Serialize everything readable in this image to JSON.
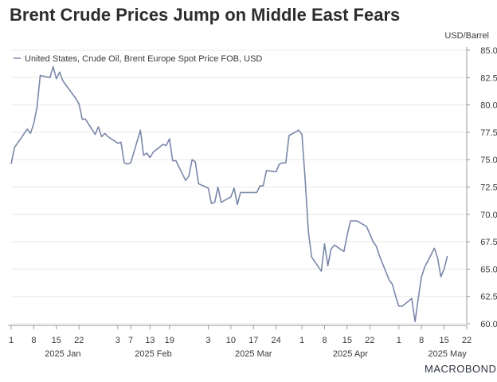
{
  "title": "Brent Crude Prices Jump on Middle East Fears",
  "logo_text": "MACROBOND",
  "colors": {
    "line": "#7a87a8",
    "grid": "#e8e8e8",
    "axis": "#999999",
    "text": "#3a3a3a",
    "title": "#2d2d2d"
  },
  "chart_data": {
    "type": "line",
    "unit_label": "USD/Barrel",
    "legend_position": "top-left",
    "grid": true,
    "ylim": [
      60.0,
      85.0
    ],
    "yticks": [
      60.0,
      62.5,
      65.0,
      67.5,
      70.0,
      72.5,
      75.0,
      77.5,
      80.0,
      82.5,
      85.0
    ],
    "y_tick_labels": [
      "60.0",
      "62.5",
      "65.0",
      "67.5",
      "70.0",
      "72.5",
      "75.0",
      "77.5",
      "80.0",
      "82.5",
      "85.0"
    ],
    "xlim": [
      "2025-01-01",
      "2025-05-22"
    ],
    "x_ticks": [
      {
        "date": "2025-01-01",
        "label": "1"
      },
      {
        "date": "2025-01-08",
        "label": "8"
      },
      {
        "date": "2025-01-15",
        "label": "15"
      },
      {
        "date": "2025-01-22",
        "label": "22"
      },
      {
        "date": "2025-02-03",
        "label": "3"
      },
      {
        "date": "2025-02-07",
        "label": "7"
      },
      {
        "date": "2025-02-13",
        "label": "13"
      },
      {
        "date": "2025-02-19",
        "label": "19"
      },
      {
        "date": "2025-03-03",
        "label": "3"
      },
      {
        "date": "2025-03-10",
        "label": "10"
      },
      {
        "date": "2025-03-17",
        "label": "17"
      },
      {
        "date": "2025-03-24",
        "label": "24"
      },
      {
        "date": "2025-04-01",
        "label": "1"
      },
      {
        "date": "2025-04-08",
        "label": "8"
      },
      {
        "date": "2025-04-15",
        "label": "15"
      },
      {
        "date": "2025-04-22",
        "label": "22"
      },
      {
        "date": "2025-05-01",
        "label": "1"
      },
      {
        "date": "2025-05-08",
        "label": "8"
      },
      {
        "date": "2025-05-15",
        "label": "15"
      },
      {
        "date": "2025-05-22",
        "label": "22"
      }
    ],
    "month_labels": [
      {
        "date": "2025-01-17",
        "label": "2025 Jan"
      },
      {
        "date": "2025-02-14",
        "label": "2025 Feb"
      },
      {
        "date": "2025-03-17",
        "label": "2025 Mar"
      },
      {
        "date": "2025-04-16",
        "label": "2025 Apr"
      },
      {
        "date": "2025-05-16",
        "label": "2025 May"
      }
    ],
    "series": [
      {
        "name": "United States, Crude Oil, Brent Europe Spot Price FOB, USD",
        "x": [
          "2025-01-01",
          "2025-01-02",
          "2025-01-06",
          "2025-01-07",
          "2025-01-08",
          "2025-01-09",
          "2025-01-10",
          "2025-01-13",
          "2025-01-14",
          "2025-01-15",
          "2025-01-16",
          "2025-01-17",
          "2025-01-21",
          "2025-01-22",
          "2025-01-23",
          "2025-01-24",
          "2025-01-27",
          "2025-01-28",
          "2025-01-29",
          "2025-01-30",
          "2025-01-31",
          "2025-02-03",
          "2025-02-04",
          "2025-02-05",
          "2025-02-06",
          "2025-02-07",
          "2025-02-10",
          "2025-02-11",
          "2025-02-12",
          "2025-02-13",
          "2025-02-14",
          "2025-02-17",
          "2025-02-18",
          "2025-02-19",
          "2025-02-20",
          "2025-02-21",
          "2025-02-24",
          "2025-02-25",
          "2025-02-26",
          "2025-02-27",
          "2025-02-28",
          "2025-03-03",
          "2025-03-04",
          "2025-03-05",
          "2025-03-06",
          "2025-03-07",
          "2025-03-10",
          "2025-03-11",
          "2025-03-12",
          "2025-03-13",
          "2025-03-14",
          "2025-03-17",
          "2025-03-18",
          "2025-03-19",
          "2025-03-20",
          "2025-03-21",
          "2025-03-24",
          "2025-03-25",
          "2025-03-26",
          "2025-03-27",
          "2025-03-28",
          "2025-03-31",
          "2025-04-01",
          "2025-04-02",
          "2025-04-03",
          "2025-04-04",
          "2025-04-07",
          "2025-04-08",
          "2025-04-09",
          "2025-04-10",
          "2025-04-11",
          "2025-04-14",
          "2025-04-15",
          "2025-04-16",
          "2025-04-17",
          "2025-04-18",
          "2025-04-21",
          "2025-04-22",
          "2025-04-23",
          "2025-04-24",
          "2025-04-25",
          "2025-04-28",
          "2025-04-29",
          "2025-04-30",
          "2025-05-01",
          "2025-05-02",
          "2025-05-05",
          "2025-05-06",
          "2025-05-07",
          "2025-05-08",
          "2025-05-09",
          "2025-05-12",
          "2025-05-13",
          "2025-05-14",
          "2025-05-15",
          "2025-05-16"
        ],
        "values": [
          74.6,
          76.1,
          77.8,
          77.4,
          78.3,
          79.8,
          82.7,
          82.5,
          83.5,
          82.4,
          83.0,
          82.2,
          80.6,
          80.1,
          78.7,
          78.7,
          77.3,
          78.0,
          77.1,
          77.4,
          77.1,
          76.5,
          76.6,
          74.7,
          74.6,
          74.7,
          77.7,
          75.4,
          75.6,
          75.2,
          75.7,
          76.4,
          76.3,
          76.9,
          74.9,
          74.9,
          73.1,
          73.5,
          75.0,
          74.8,
          72.8,
          72.4,
          71.0,
          71.1,
          72.5,
          71.1,
          71.6,
          72.4,
          70.9,
          72.0,
          72.0,
          72.0,
          72.0,
          72.6,
          72.6,
          74.0,
          73.9,
          74.6,
          74.7,
          74.7,
          77.2,
          77.7,
          77.3,
          73.1,
          68.4,
          66.1,
          64.8,
          67.3,
          65.3,
          66.8,
          67.2,
          66.6,
          68.1,
          69.4,
          69.4,
          69.4,
          68.9,
          68.2,
          67.5,
          67.1,
          66.2,
          64.0,
          63.6,
          62.5,
          61.6,
          61.6,
          62.3,
          60.2,
          62.3,
          64.3,
          65.2,
          66.9,
          66.0,
          64.3,
          65.0,
          66.2
        ]
      }
    ]
  }
}
